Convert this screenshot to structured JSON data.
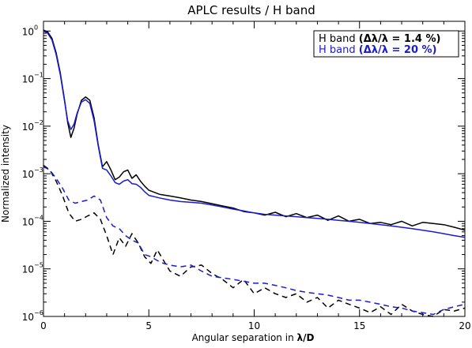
{
  "chart_data": {
    "type": "line",
    "title": "APLC results / H band",
    "xlabel": "Angular separation in λ/D",
    "ylabel": "Normalized intensity",
    "xlim": [
      0,
      20
    ],
    "ylim": [
      1e-06,
      1.6
    ],
    "yscale": "log",
    "x_ticks": [
      {
        "value": 0,
        "label": "0"
      },
      {
        "value": 5,
        "label": "5"
      },
      {
        "value": 10,
        "label": "10"
      },
      {
        "value": 15,
        "label": "15"
      },
      {
        "value": 20,
        "label": "20"
      }
    ],
    "y_ticks": [
      {
        "value": 1,
        "base": "10",
        "exp": "0"
      },
      {
        "value": 0.1,
        "base": "10",
        "exp": "−1"
      },
      {
        "value": 0.01,
        "base": "10",
        "exp": "−2"
      },
      {
        "value": 0.001,
        "base": "10",
        "exp": "−3"
      },
      {
        "value": 0.0001,
        "base": "10",
        "exp": "−4"
      },
      {
        "value": 1e-05,
        "base": "10",
        "exp": "−5"
      },
      {
        "value": 1e-06,
        "base": "10",
        "exp": "−6"
      }
    ],
    "legend": {
      "position": "top-right",
      "entries": [
        {
          "label": "H band (Δλ/λ = 1.4 %)",
          "color": "#000000"
        },
        {
          "label": "H band (Δλ/λ = 20 %)",
          "color": "#1a1ad0"
        }
      ]
    },
    "series": [
      {
        "color": "#000000",
        "style": "solid",
        "x": [
          0,
          0.2,
          0.4,
          0.6,
          0.8,
          1.0,
          1.15,
          1.3,
          1.45,
          1.6,
          1.8,
          2.0,
          2.2,
          2.4,
          2.6,
          2.8,
          3.0,
          3.2,
          3.4,
          3.6,
          3.8,
          4.0,
          4.2,
          4.4,
          4.6,
          4.8,
          5.0,
          5.5,
          6.0,
          6.5,
          7.0,
          7.5,
          8.0,
          8.5,
          9.0,
          9.5,
          10.0,
          10.5,
          11.0,
          11.5,
          12.0,
          12.5,
          13.0,
          13.5,
          14.0,
          14.5,
          15.0,
          15.5,
          16.0,
          16.5,
          17.0,
          17.5,
          18.0,
          18.5,
          19.0,
          19.5,
          20.0
        ],
        "y": [
          1.05,
          0.95,
          0.7,
          0.35,
          0.13,
          0.035,
          0.012,
          0.0058,
          0.009,
          0.018,
          0.035,
          0.041,
          0.035,
          0.015,
          0.004,
          0.0014,
          0.0018,
          0.0012,
          0.00075,
          0.00085,
          0.0011,
          0.0012,
          0.0008,
          0.00095,
          0.0007,
          0.00055,
          0.00045,
          0.00037,
          0.00034,
          0.00031,
          0.00028,
          0.00026,
          0.000235,
          0.00021,
          0.00019,
          0.00016,
          0.00015,
          0.000135,
          0.000155,
          0.000125,
          0.000145,
          0.00012,
          0.000135,
          0.000105,
          0.00013,
          0.0001,
          0.00011,
          9e-05,
          9.5e-05,
          8.5e-05,
          0.0001,
          8e-05,
          9.5e-05,
          9e-05,
          8.5e-05,
          7.5e-05,
          6.5e-05
        ]
      },
      {
        "color": "#1a1ad0",
        "style": "solid",
        "x": [
          0,
          0.2,
          0.4,
          0.6,
          0.8,
          1.0,
          1.15,
          1.3,
          1.45,
          1.6,
          1.8,
          2.0,
          2.2,
          2.4,
          2.6,
          2.8,
          3.0,
          3.2,
          3.4,
          3.6,
          3.8,
          4.0,
          4.2,
          4.4,
          4.6,
          4.8,
          5.0,
          5.5,
          6.0,
          6.5,
          7.0,
          7.5,
          8.0,
          8.5,
          9.0,
          9.5,
          10.0,
          10.5,
          11.0,
          11.5,
          12.0,
          12.5,
          13.0,
          13.5,
          14.0,
          14.5,
          15.0,
          15.5,
          16.0,
          16.5,
          17.0,
          17.5,
          18.0,
          18.5,
          19.0,
          19.5,
          20.0
        ],
        "y": [
          1.0,
          0.9,
          0.65,
          0.32,
          0.12,
          0.033,
          0.013,
          0.0085,
          0.011,
          0.019,
          0.032,
          0.036,
          0.03,
          0.013,
          0.0038,
          0.0013,
          0.0012,
          0.0009,
          0.00065,
          0.0006,
          0.0007,
          0.00075,
          0.00062,
          0.0006,
          0.00052,
          0.00042,
          0.00035,
          0.00031,
          0.00028,
          0.00026,
          0.00025,
          0.00024,
          0.00022,
          0.0002,
          0.00018,
          0.000165,
          0.00015,
          0.00014,
          0.000135,
          0.00013,
          0.000125,
          0.00012,
          0.000115,
          0.00011,
          0.000105,
          0.0001,
          9.5e-05,
          9e-05,
          8.5e-05,
          8e-05,
          7.5e-05,
          7e-05,
          6.5e-05,
          6e-05,
          5.5e-05,
          5e-05,
          4.6e-05
        ]
      },
      {
        "color": "#000000",
        "style": "dashed",
        "x": [
          0,
          0.3,
          0.6,
          0.9,
          1.2,
          1.5,
          1.8,
          2.1,
          2.4,
          2.7,
          3.0,
          3.3,
          3.6,
          3.9,
          4.2,
          4.5,
          4.8,
          5.1,
          5.4,
          5.7,
          6.0,
          6.5,
          7.0,
          7.5,
          8.0,
          8.5,
          9.0,
          9.5,
          10.0,
          10.5,
          11.0,
          11.5,
          12.0,
          12.5,
          13.0,
          13.5,
          14.0,
          14.5,
          15.0,
          15.5,
          16.0,
          16.5,
          17.0,
          17.5,
          18.0,
          18.5,
          19.0,
          19.5,
          20.0
        ],
        "y": [
          0.0015,
          0.0012,
          0.0007,
          0.00035,
          0.00015,
          0.0001,
          0.00011,
          0.00013,
          0.00015,
          0.00011,
          5e-05,
          2e-05,
          4.5e-05,
          3e-05,
          5.5e-05,
          3.5e-05,
          1.8e-05,
          1.3e-05,
          2.5e-05,
          1.5e-05,
          9e-06,
          7e-06,
          1.1e-05,
          1.2e-05,
          8e-06,
          6e-06,
          4e-06,
          6e-06,
          3e-06,
          4e-06,
          3e-06,
          2.5e-06,
          3e-06,
          2e-06,
          2.5e-06,
          1.5e-06,
          2.2e-06,
          1.8e-06,
          1.5e-06,
          1.2e-06,
          1.6e-06,
          1.1e-06,
          1.8e-06,
          1.3e-06,
          1.1e-06,
          1e-06,
          1.4e-06,
          1.3e-06,
          1.5e-06
        ]
      },
      {
        "color": "#1a1ad0",
        "style": "dashed",
        "x": [
          0,
          0.3,
          0.6,
          0.9,
          1.2,
          1.5,
          1.8,
          2.1,
          2.4,
          2.7,
          3.0,
          3.3,
          3.6,
          3.9,
          4.2,
          4.5,
          4.8,
          5.1,
          5.4,
          5.7,
          6.0,
          6.5,
          7.0,
          7.5,
          8.0,
          8.5,
          9.0,
          9.5,
          10.0,
          10.5,
          11.0,
          11.5,
          12.0,
          12.5,
          13.0,
          13.5,
          14.0,
          14.5,
          15.0,
          15.5,
          16.0,
          16.5,
          17.0,
          17.5,
          18.0,
          18.5,
          19.0,
          19.5,
          20.0
        ],
        "y": [
          0.0014,
          0.0012,
          0.0008,
          0.0005,
          0.00028,
          0.00024,
          0.00026,
          0.00028,
          0.00034,
          0.00028,
          0.00012,
          8e-05,
          7e-05,
          5e-05,
          4e-05,
          3.5e-05,
          2e-05,
          1.8e-05,
          1.5e-05,
          1.3e-05,
          1.2e-05,
          1.1e-05,
          1.2e-05,
          9e-06,
          7e-06,
          6.5e-06,
          6e-06,
          5.5e-06,
          5e-06,
          5e-06,
          4.5e-06,
          4e-06,
          3.5e-06,
          3.2e-06,
          3e-06,
          2.8e-06,
          2.5e-06,
          2.2e-06,
          2.2e-06,
          2e-06,
          1.8e-06,
          1.6e-06,
          1.5e-06,
          1.3e-06,
          1.2e-06,
          1.1e-06,
          1.4e-06,
          1.6e-06,
          1.8e-06
        ]
      }
    ]
  }
}
